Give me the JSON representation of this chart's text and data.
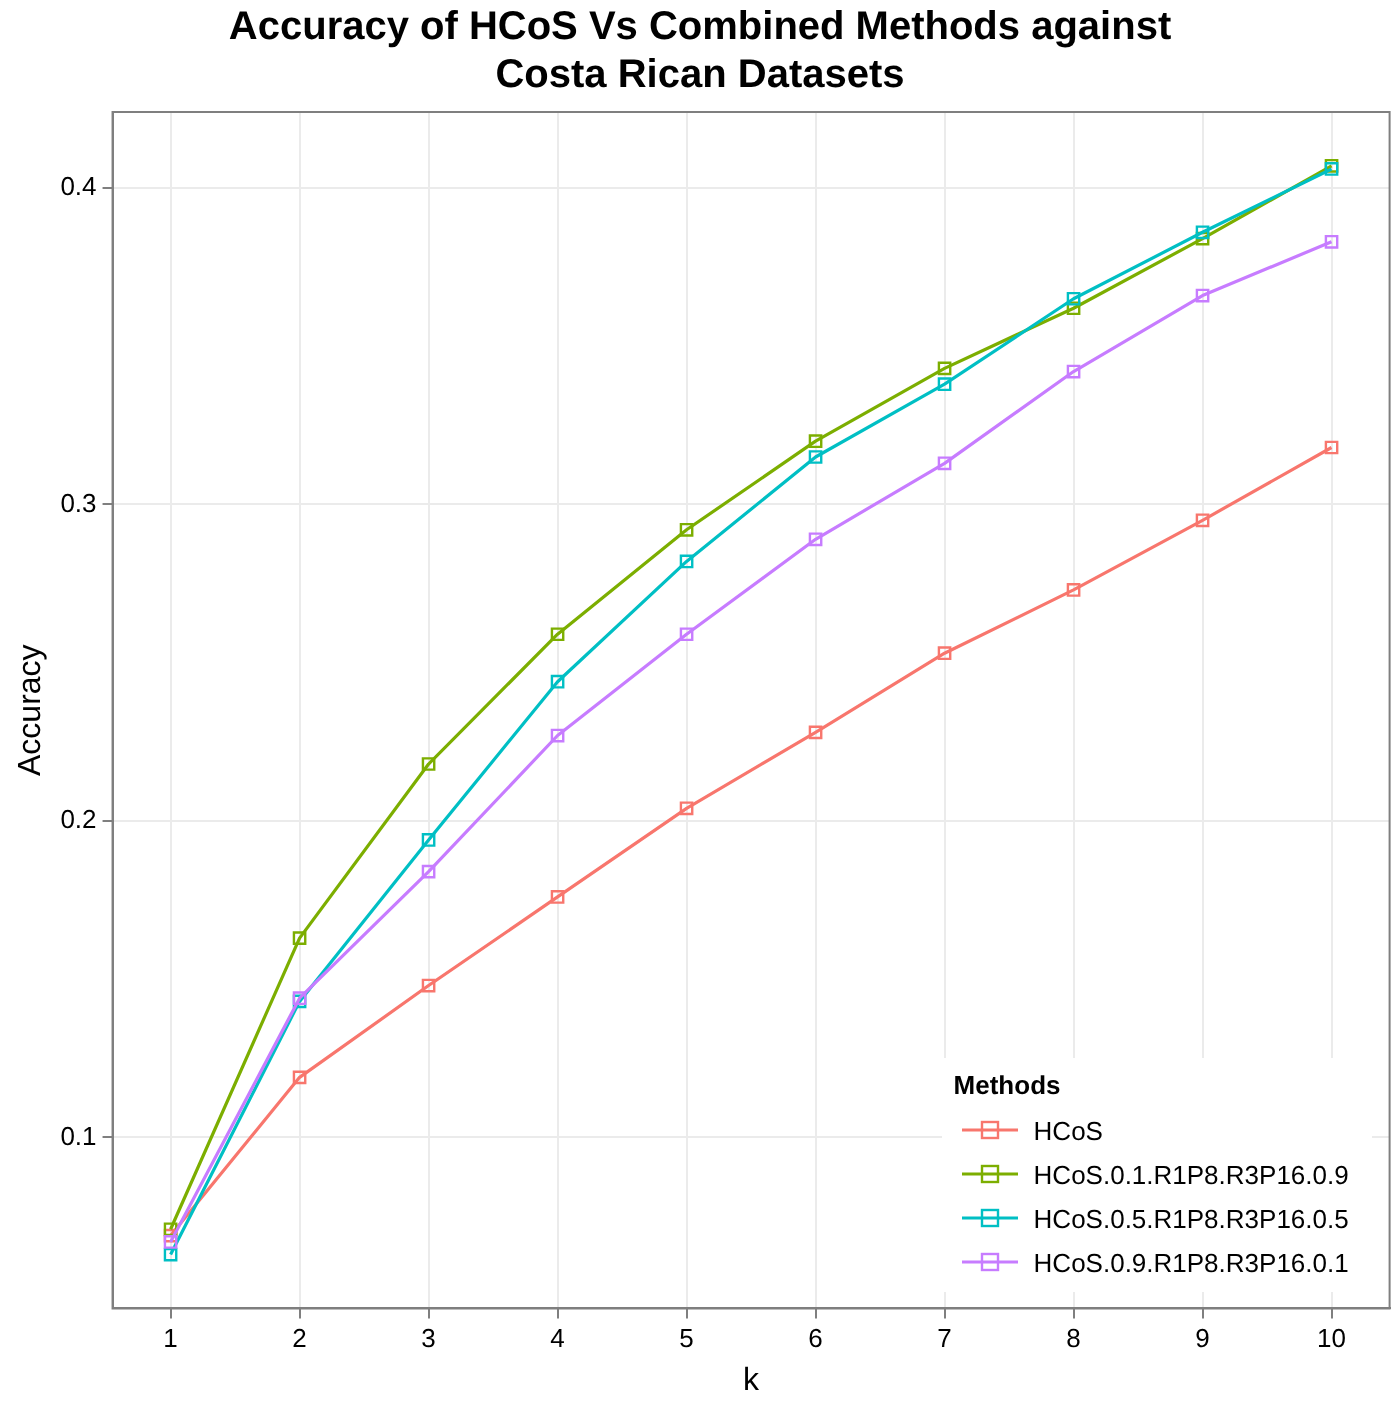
{
  "chart_data": {
    "type": "line",
    "title": "Accuracy of HCoS Vs Combined Methods against\nCosta Rican Datasets",
    "xlabel": "k",
    "ylabel": "Accuracy",
    "legend_title": "Methods",
    "x": [
      1,
      2,
      3,
      4,
      5,
      6,
      7,
      8,
      9,
      10
    ],
    "series": [
      {
        "name": "HCoS",
        "color": "#f8766d",
        "values": [
          0.069,
          0.119,
          0.148,
          0.176,
          0.204,
          0.228,
          0.253,
          0.273,
          0.295,
          0.318
        ]
      },
      {
        "name": "HCoS.0.1.R1P8.R3P16.0.9",
        "color": "#7cae00",
        "values": [
          0.071,
          0.163,
          0.218,
          0.259,
          0.292,
          0.32,
          0.343,
          0.362,
          0.384,
          0.407
        ]
      },
      {
        "name": "HCoS.0.5.R1P8.R3P16.0.5",
        "color": "#00bfc4",
        "values": [
          0.063,
          0.143,
          0.194,
          0.244,
          0.282,
          0.315,
          0.338,
          0.365,
          0.386,
          0.406
        ]
      },
      {
        "name": "HCoS.0.9.R1P8.R3P16.0.1",
        "color": "#c77cff",
        "values": [
          0.067,
          0.144,
          0.184,
          0.227,
          0.259,
          0.289,
          0.313,
          0.342,
          0.366,
          0.383
        ]
      }
    ],
    "xlim": [
      0.55,
      10.45
    ],
    "xticks": [
      1,
      2,
      3,
      4,
      5,
      6,
      7,
      8,
      9,
      10
    ],
    "ylim": [
      0.046,
      0.424
    ],
    "yticks": [
      0.1,
      0.2,
      0.3,
      0.4
    ],
    "grid": true,
    "legend": "bottom right",
    "marker": "square",
    "line_style": "solid"
  }
}
